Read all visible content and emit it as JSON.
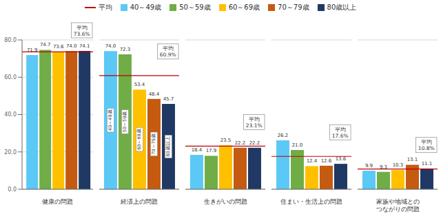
{
  "chart_data": {
    "type": "bar",
    "categories": [
      "健康の問題",
      "経済上の問題",
      "生きがいの問題",
      "住まい・生活上の問題",
      "家族や地域との\nつながりの問題"
    ],
    "series": [
      {
        "name": "平均",
        "type": "line",
        "color": "#c00000",
        "values": [
          73.6,
          60.9,
          23.1,
          17.6,
          10.8
        ]
      },
      {
        "name": "40～49歳",
        "color": "#5bc8f5",
        "values": [
          71.9,
          74.0,
          18.4,
          26.2,
          9.9
        ],
        "value_labels": [
          "71.9",
          "74.0",
          "18.4",
          "26.2",
          "9.9"
        ]
      },
      {
        "name": "50～59歳",
        "color": "#70ad47",
        "values": [
          74.7,
          72.3,
          17.9,
          21.0,
          9.3
        ],
        "value_labels": [
          "74.7",
          "72.3",
          "17.9",
          "21.0",
          "9.3"
        ]
      },
      {
        "name": "60～69歳",
        "color": "#ffc000",
        "values": [
          73.6,
          53.4,
          23.5,
          12.4,
          10.3
        ],
        "value_labels": [
          "73.6",
          "53.4",
          "23.5",
          "12.4",
          "10.3"
        ]
      },
      {
        "name": "70～79歳",
        "color": "#c55a11",
        "values": [
          74.0,
          48.4,
          22.2,
          12.6,
          13.1
        ],
        "value_labels": [
          "74.0",
          "48.4",
          "22.2",
          "12.6",
          "13.1"
        ]
      },
      {
        "name": "80歳以上",
        "color": "#1f3864",
        "values": [
          74.1,
          45.7,
          22.2,
          13.6,
          11.1
        ],
        "value_labels": [
          "74.1",
          "45.7",
          "22.2",
          "13.6",
          "11.1"
        ]
      }
    ],
    "ylim": [
      0,
      80
    ],
    "yticks": [
      {
        "value": 0,
        "label": "0.0"
      },
      {
        "value": 20,
        "label": "20.0"
      },
      {
        "value": 40,
        "label": "40.0"
      },
      {
        "value": 60,
        "label": "60.0"
      },
      {
        "value": 80,
        "label": "80.0"
      }
    ],
    "grid": true,
    "data_labels": true,
    "legend": "top",
    "annotations": [
      {
        "text": "平均\n73.6%",
        "series": "平均",
        "category": "健康の問題"
      },
      {
        "text": "平均\n60.9%",
        "series": "平均",
        "category": "経済上の問題"
      },
      {
        "text": "平均\n23.1%",
        "series": "平均",
        "category": "生きがいの問題"
      },
      {
        "text": "平均\n17.6%",
        "series": "平均",
        "category": "住まい・生活上の問題"
      },
      {
        "text": "平均\n10.8%",
        "series": "平均",
        "category": "家族や地域との\nつながりの問題"
      },
      {
        "text": "40～49歳",
        "series": "40～49歳",
        "category": "経済上の問題"
      },
      {
        "text": "50～59歳",
        "series": "50～59歳",
        "category": "経済上の問題"
      },
      {
        "text": "60～69歳",
        "series": "60～69歳",
        "category": "経済上の問題"
      },
      {
        "text": "70～79歳",
        "series": "70～79歳",
        "category": "経済上の問題"
      },
      {
        "text": "80歳以上",
        "series": "80歳以上",
        "category": "経済上の問題"
      }
    ]
  }
}
